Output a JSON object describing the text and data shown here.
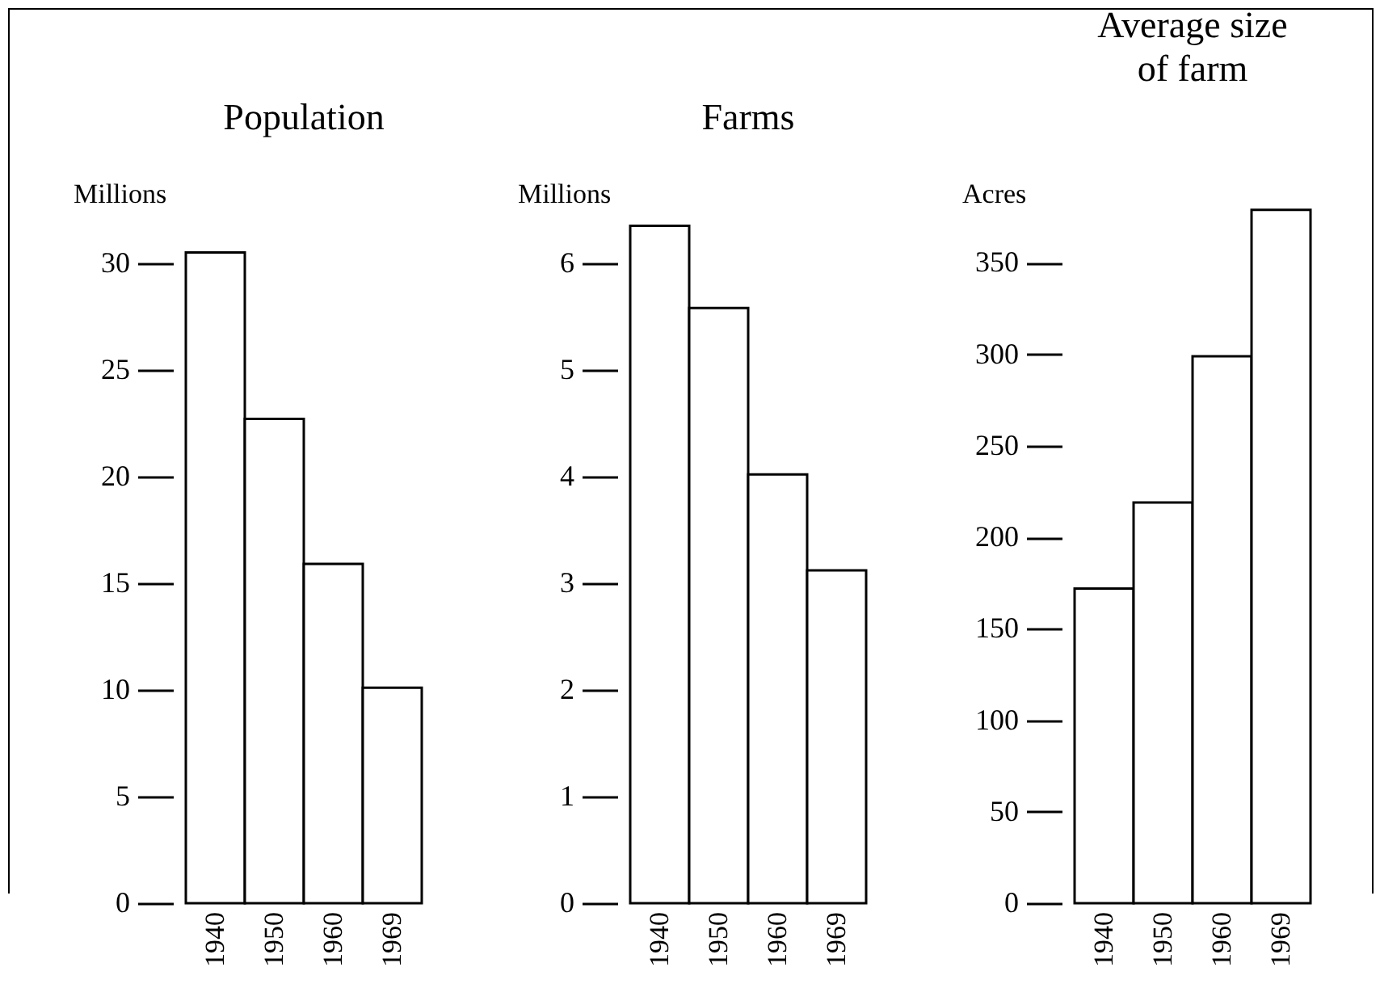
{
  "chart_data": [
    {
      "type": "bar",
      "title": "Population",
      "ylabel": "Millions",
      "categories": [
        "1940",
        "1950",
        "1960",
        "1969"
      ],
      "values": [
        30.5,
        22.7,
        15.9,
        10.1
      ],
      "color": "#ffffff",
      "ylim": [
        0,
        41.5
      ],
      "yticks": [
        0,
        5,
        10,
        15,
        20,
        25,
        30
      ],
      "grid": false,
      "legend": false
    },
    {
      "type": "bar",
      "title": "Farms",
      "ylabel": "Millions",
      "categories": [
        "1940",
        "1950",
        "1960",
        "1969"
      ],
      "values": [
        6.35,
        5.58,
        4.02,
        3.12
      ],
      "color": "#ffffff",
      "ylim": [
        0,
        8.3
      ],
      "yticks": [
        0,
        1,
        2,
        3,
        4,
        5,
        6
      ],
      "grid": false,
      "legend": false
    },
    {
      "type": "bar",
      "title": "Average size of farm",
      "ylabel": "Acres",
      "categories": [
        "1940",
        "1950",
        "1960",
        "1969"
      ],
      "values": [
        172,
        219,
        299,
        379
      ],
      "color": "#ffffff",
      "ylim": [
        0,
        484
      ],
      "yticks": [
        0,
        50,
        100,
        150,
        200,
        250,
        300,
        350
      ],
      "grid": false,
      "legend": false
    }
  ]
}
